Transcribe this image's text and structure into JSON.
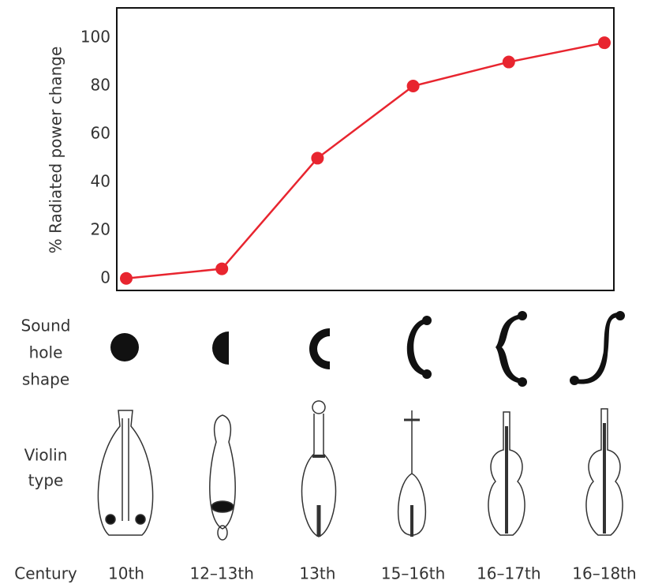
{
  "chart_data": {
    "type": "line",
    "y_label": "% Radiated power change",
    "categories": [
      "10th",
      "12–13th",
      "13th",
      "15–16th",
      "16–17th",
      "16–18th"
    ],
    "values": [
      0,
      4,
      50,
      80,
      90,
      98
    ],
    "color": "#e8252f",
    "ylim": [
      -5,
      112.5
    ],
    "yticks": [
      0,
      20,
      40,
      60,
      80,
      100
    ],
    "grid": false,
    "row_labels": {
      "sound_hole": [
        "Sound",
        "hole",
        "shape"
      ],
      "violin": [
        "Violin",
        "type"
      ],
      "century": "Century"
    }
  }
}
